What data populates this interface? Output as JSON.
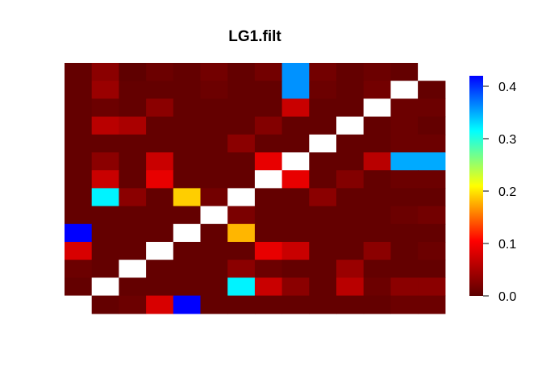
{
  "chart_data": {
    "type": "heatmap",
    "title": "LG1.filt",
    "xlabel": "",
    "ylabel": "",
    "rows": 14,
    "cols": 14,
    "zlim": [
      0,
      0.42
    ],
    "colorbar": {
      "ticks": [
        0.0,
        0.1,
        0.2,
        0.3,
        0.4
      ],
      "tick_labels": [
        "0.0",
        "0.1",
        "0.2",
        "0.3",
        "0.4"
      ],
      "placement": "right"
    },
    "colormap": [
      "#5c0000",
      "#ff0000",
      "#ffff00",
      "#00ffff",
      "#0000ff"
    ],
    "na_color": "#ffffff",
    "values_top_to_bottom": [
      [
        0.005,
        0.03,
        0.002,
        0.01,
        0.005,
        0.015,
        0.005,
        0.015,
        0.36,
        0.015,
        0.005,
        0.01,
        0.005,
        null
      ],
      [
        0.005,
        0.04,
        0.005,
        0.005,
        0.005,
        0.01,
        0.005,
        0.005,
        0.36,
        0.01,
        0.005,
        0.015,
        null,
        0.005
      ],
      [
        0.005,
        0.01,
        0.005,
        0.03,
        0.005,
        0.005,
        0.005,
        0.005,
        0.07,
        0.005,
        0.005,
        null,
        0.01,
        0.01
      ],
      [
        0.005,
        0.06,
        0.05,
        0.005,
        0.005,
        0.005,
        0.005,
        0.025,
        0.005,
        0.005,
        null,
        0.005,
        0.01,
        0.005
      ],
      [
        0.005,
        0.005,
        0.005,
        0.005,
        0.005,
        0.005,
        0.03,
        0.005,
        0.005,
        null,
        0.005,
        0.005,
        0.01,
        0.01
      ],
      [
        0.005,
        0.03,
        0.005,
        0.07,
        0.005,
        0.005,
        0.005,
        0.09,
        null,
        0.005,
        0.005,
        0.06,
        0.35,
        0.35
      ],
      [
        0.005,
        0.07,
        0.005,
        0.09,
        0.005,
        0.005,
        0.005,
        null,
        0.09,
        0.005,
        0.025,
        0.005,
        0.01,
        0.01
      ],
      [
        0.005,
        0.32,
        0.03,
        0.005,
        0.19,
        0.015,
        null,
        0.005,
        0.005,
        0.03,
        0.005,
        0.005,
        0.005,
        0.005
      ],
      [
        0.005,
        0.005,
        0.005,
        0.005,
        0.005,
        null,
        0.02,
        0.005,
        0.005,
        0.005,
        0.005,
        0.005,
        0.01,
        0.015
      ],
      [
        0.42,
        0.005,
        0.005,
        0.005,
        null,
        0.005,
        0.18,
        0.005,
        0.005,
        0.005,
        0.005,
        0.005,
        0.005,
        0.005
      ],
      [
        0.08,
        0.005,
        0.005,
        null,
        0.005,
        0.005,
        0.005,
        0.09,
        0.07,
        0.005,
        0.005,
        0.03,
        0.005,
        0.01
      ],
      [
        0.01,
        0.005,
        null,
        0.005,
        0.005,
        0.005,
        0.03,
        0.01,
        0.005,
        0.005,
        0.04,
        0.005,
        0.005,
        0.005
      ],
      [
        0.005,
        null,
        0.005,
        0.005,
        0.005,
        0.005,
        0.32,
        0.07,
        0.03,
        0.005,
        0.06,
        0.01,
        0.03,
        0.03
      ],
      [
        null,
        0.005,
        0.01,
        0.08,
        0.42,
        0.005,
        0.005,
        0.005,
        0.005,
        0.005,
        0.005,
        0.005,
        0.01,
        0.01
      ]
    ]
  }
}
